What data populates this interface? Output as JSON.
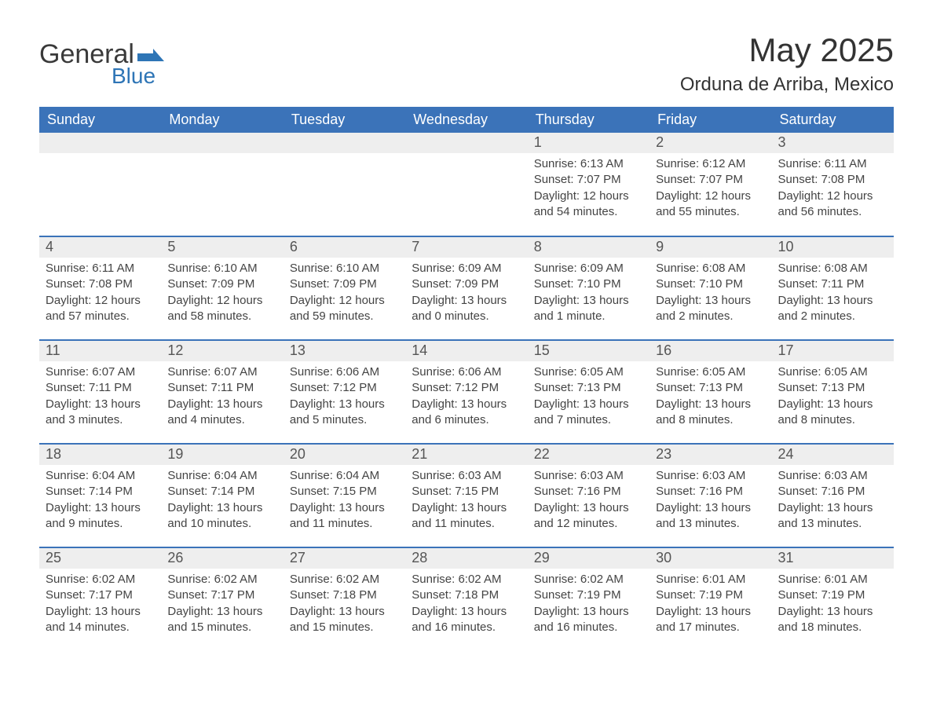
{
  "logo": {
    "general": "General",
    "blue": "Blue",
    "accent_color": "#2e75b6"
  },
  "title": {
    "month": "May 2025",
    "location": "Orduna de Arriba, Mexico"
  },
  "colors": {
    "header_bg": "#3b73b9",
    "header_text": "#ffffff",
    "strip_bg": "#eeeeee",
    "text": "#3a3a3a",
    "row_divider": "#3b73b9"
  },
  "type": "calendar",
  "day_headers": [
    "Sunday",
    "Monday",
    "Tuesday",
    "Wednesday",
    "Thursday",
    "Friday",
    "Saturday"
  ],
  "weeks": [
    [
      null,
      null,
      null,
      null,
      {
        "n": "1",
        "sunrise": "6:13 AM",
        "sunset": "7:07 PM",
        "daylight": "12 hours and 54 minutes."
      },
      {
        "n": "2",
        "sunrise": "6:12 AM",
        "sunset": "7:07 PM",
        "daylight": "12 hours and 55 minutes."
      },
      {
        "n": "3",
        "sunrise": "6:11 AM",
        "sunset": "7:08 PM",
        "daylight": "12 hours and 56 minutes."
      }
    ],
    [
      {
        "n": "4",
        "sunrise": "6:11 AM",
        "sunset": "7:08 PM",
        "daylight": "12 hours and 57 minutes."
      },
      {
        "n": "5",
        "sunrise": "6:10 AM",
        "sunset": "7:09 PM",
        "daylight": "12 hours and 58 minutes."
      },
      {
        "n": "6",
        "sunrise": "6:10 AM",
        "sunset": "7:09 PM",
        "daylight": "12 hours and 59 minutes."
      },
      {
        "n": "7",
        "sunrise": "6:09 AM",
        "sunset": "7:09 PM",
        "daylight": "13 hours and 0 minutes."
      },
      {
        "n": "8",
        "sunrise": "6:09 AM",
        "sunset": "7:10 PM",
        "daylight": "13 hours and 1 minute."
      },
      {
        "n": "9",
        "sunrise": "6:08 AM",
        "sunset": "7:10 PM",
        "daylight": "13 hours and 2 minutes."
      },
      {
        "n": "10",
        "sunrise": "6:08 AM",
        "sunset": "7:11 PM",
        "daylight": "13 hours and 2 minutes."
      }
    ],
    [
      {
        "n": "11",
        "sunrise": "6:07 AM",
        "sunset": "7:11 PM",
        "daylight": "13 hours and 3 minutes."
      },
      {
        "n": "12",
        "sunrise": "6:07 AM",
        "sunset": "7:11 PM",
        "daylight": "13 hours and 4 minutes."
      },
      {
        "n": "13",
        "sunrise": "6:06 AM",
        "sunset": "7:12 PM",
        "daylight": "13 hours and 5 minutes."
      },
      {
        "n": "14",
        "sunrise": "6:06 AM",
        "sunset": "7:12 PM",
        "daylight": "13 hours and 6 minutes."
      },
      {
        "n": "15",
        "sunrise": "6:05 AM",
        "sunset": "7:13 PM",
        "daylight": "13 hours and 7 minutes."
      },
      {
        "n": "16",
        "sunrise": "6:05 AM",
        "sunset": "7:13 PM",
        "daylight": "13 hours and 8 minutes."
      },
      {
        "n": "17",
        "sunrise": "6:05 AM",
        "sunset": "7:13 PM",
        "daylight": "13 hours and 8 minutes."
      }
    ],
    [
      {
        "n": "18",
        "sunrise": "6:04 AM",
        "sunset": "7:14 PM",
        "daylight": "13 hours and 9 minutes."
      },
      {
        "n": "19",
        "sunrise": "6:04 AM",
        "sunset": "7:14 PM",
        "daylight": "13 hours and 10 minutes."
      },
      {
        "n": "20",
        "sunrise": "6:04 AM",
        "sunset": "7:15 PM",
        "daylight": "13 hours and 11 minutes."
      },
      {
        "n": "21",
        "sunrise": "6:03 AM",
        "sunset": "7:15 PM",
        "daylight": "13 hours and 11 minutes."
      },
      {
        "n": "22",
        "sunrise": "6:03 AM",
        "sunset": "7:16 PM",
        "daylight": "13 hours and 12 minutes."
      },
      {
        "n": "23",
        "sunrise": "6:03 AM",
        "sunset": "7:16 PM",
        "daylight": "13 hours and 13 minutes."
      },
      {
        "n": "24",
        "sunrise": "6:03 AM",
        "sunset": "7:16 PM",
        "daylight": "13 hours and 13 minutes."
      }
    ],
    [
      {
        "n": "25",
        "sunrise": "6:02 AM",
        "sunset": "7:17 PM",
        "daylight": "13 hours and 14 minutes."
      },
      {
        "n": "26",
        "sunrise": "6:02 AM",
        "sunset": "7:17 PM",
        "daylight": "13 hours and 15 minutes."
      },
      {
        "n": "27",
        "sunrise": "6:02 AM",
        "sunset": "7:18 PM",
        "daylight": "13 hours and 15 minutes."
      },
      {
        "n": "28",
        "sunrise": "6:02 AM",
        "sunset": "7:18 PM",
        "daylight": "13 hours and 16 minutes."
      },
      {
        "n": "29",
        "sunrise": "6:02 AM",
        "sunset": "7:19 PM",
        "daylight": "13 hours and 16 minutes."
      },
      {
        "n": "30",
        "sunrise": "6:01 AM",
        "sunset": "7:19 PM",
        "daylight": "13 hours and 17 minutes."
      },
      {
        "n": "31",
        "sunrise": "6:01 AM",
        "sunset": "7:19 PM",
        "daylight": "13 hours and 18 minutes."
      }
    ]
  ],
  "labels": {
    "sunrise": "Sunrise: ",
    "sunset": "Sunset: ",
    "daylight": "Daylight: "
  }
}
